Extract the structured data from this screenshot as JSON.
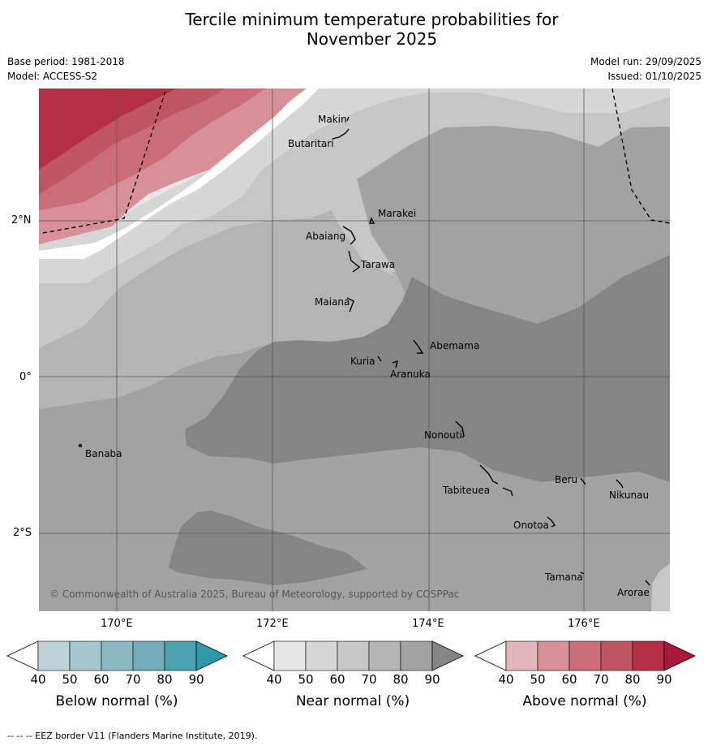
{
  "title_line1": "Tercile minimum temperature probabilities for",
  "title_line2": "November 2025",
  "base_period": "Base period: 1981-2018",
  "model": "Model: ACCESS-S2",
  "model_run": "Model run: 29/09/2025",
  "issued": "Issued: 01/10/2025",
  "copyright": "© Commonwealth of Australia 2025, Bureau of Meteorology, supported by COSPPac",
  "lat_labels": [
    "2°N",
    "0°",
    "2°S"
  ],
  "lon_labels": [
    "170°E",
    "172°E",
    "174°E",
    "176°E"
  ],
  "places": [
    {
      "name": "Makin"
    },
    {
      "name": "Butaritari"
    },
    {
      "name": "Marakei"
    },
    {
      "name": "Abaiang"
    },
    {
      "name": "Tarawa"
    },
    {
      "name": "Maiana"
    },
    {
      "name": "Abemama"
    },
    {
      "name": "Kuria"
    },
    {
      "name": "Aranuka"
    },
    {
      "name": "Banaba"
    },
    {
      "name": "Nonouti"
    },
    {
      "name": "Beru"
    },
    {
      "name": "Tabiteuea"
    },
    {
      "name": "Nikunau"
    },
    {
      "name": "Onotoa"
    },
    {
      "name": "Tamana"
    },
    {
      "name": "Arorae"
    }
  ],
  "colorbars": [
    {
      "label": "Below normal (%)",
      "ticks": [
        "40",
        "50",
        "60",
        "70",
        "80",
        "90"
      ],
      "colors": [
        "#bcd3da",
        "#a5c6cd",
        "#8db8c3",
        "#73abb8",
        "#4aa2b1",
        "#2f98a9"
      ]
    },
    {
      "label": "Near normal (%)",
      "ticks": [
        "40",
        "50",
        "60",
        "70",
        "80",
        "90"
      ],
      "colors": [
        "#e6e6e6",
        "#d6d6d6",
        "#c6c6c6",
        "#b4b4b4",
        "#a2a2a2",
        "#858585"
      ]
    },
    {
      "label": "Above normal (%)",
      "ticks": [
        "40",
        "50",
        "60",
        "70",
        "80",
        "90"
      ],
      "colors": [
        "#e2b6bd",
        "#d78f98",
        "#cb6d78",
        "#c15663",
        "#b42f44",
        "#a9183a"
      ]
    }
  ],
  "footnote": "--  --  -- EEZ border V11 (Flanders Marine Institute, 2019)."
}
